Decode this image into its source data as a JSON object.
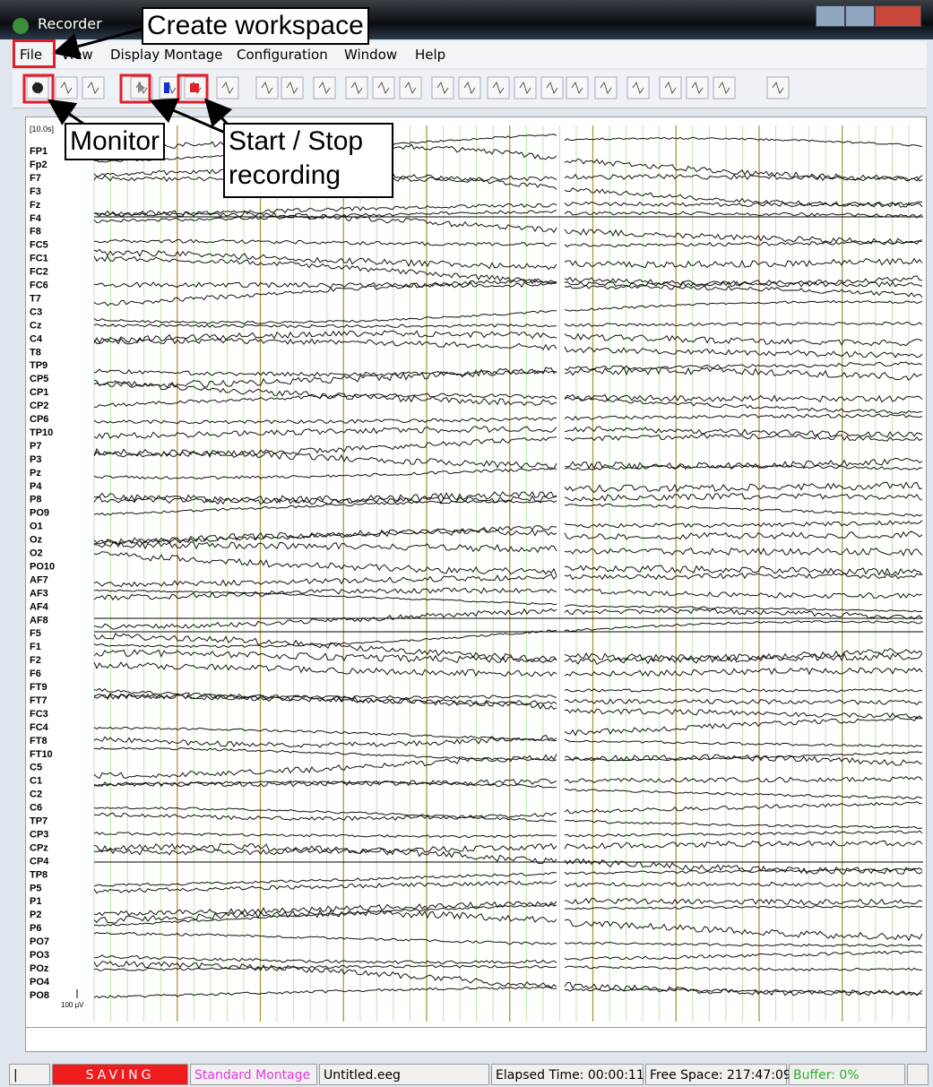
{
  "window": {
    "title": "Recorder"
  },
  "menu": [
    "File",
    "View",
    "Display Montage",
    "Configuration",
    "Window",
    "Help"
  ],
  "annotations": {
    "create_workspace": "Create workspace",
    "monitor": "Monitor",
    "start_stop": "Start / Stop recording"
  },
  "display": {
    "time_base": "[10.0s]",
    "amplitude_scale": "100 µV",
    "channels": [
      "FP1",
      "Fp2",
      "F7",
      "F3",
      "Fz",
      "F4",
      "F8",
      "FC5",
      "FC1",
      "FC2",
      "FC6",
      "T7",
      "C3",
      "Cz",
      "C4",
      "T8",
      "TP9",
      "CP5",
      "CP1",
      "CP2",
      "CP6",
      "TP10",
      "P7",
      "P3",
      "Pz",
      "P4",
      "P8",
      "PO9",
      "O1",
      "Oz",
      "O2",
      "PO10",
      "AF7",
      "AF3",
      "AF4",
      "AF8",
      "F5",
      "F1",
      "F2",
      "F6",
      "FT9",
      "FT7",
      "FC3",
      "FC4",
      "FT8",
      "FT10",
      "C5",
      "C1",
      "C2",
      "C6",
      "TP7",
      "CP3",
      "CPz",
      "CP4",
      "TP8",
      "P5",
      "P1",
      "P2",
      "P6",
      "PO7",
      "PO3",
      "POz",
      "PO4",
      "PO8"
    ]
  },
  "status_bar": {
    "state": "SAVING",
    "montage": "Standard Montage",
    "file": "Untitled.eeg",
    "elapsed": "Elapsed Time: 00:00:11",
    "free_space": "Free Space: 217:47:09",
    "buffer": "Buffer: 0%"
  }
}
